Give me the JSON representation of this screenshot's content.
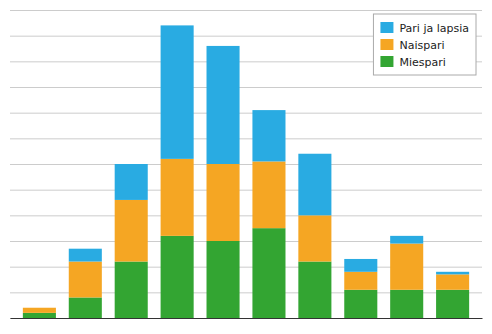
{
  "chart_data": {
    "type": "bar",
    "stacked": true,
    "categories": [
      null,
      null,
      null,
      null,
      null,
      null,
      null,
      null,
      null,
      null
    ],
    "series": [
      {
        "name": "Miespari",
        "color": "#33a532",
        "values": [
          2,
          8,
          22,
          32,
          30,
          35,
          22,
          11,
          11,
          11
        ]
      },
      {
        "name": "Naispari",
        "color": "#f5a623",
        "values": [
          2,
          14,
          24,
          30,
          30,
          26,
          18,
          7,
          18,
          6
        ]
      },
      {
        "name": "Pari ja lapsia",
        "color": "#29abe2",
        "values": [
          0,
          5,
          14,
          52,
          46,
          20,
          24,
          5,
          3,
          1
        ]
      }
    ],
    "ylim": [
      0,
      120
    ],
    "yticks": [
      0,
      10,
      20,
      30,
      40,
      50,
      60,
      70,
      80,
      90,
      100,
      110,
      120
    ],
    "grid": true,
    "legend": "upper right",
    "tick_labels": false
  }
}
